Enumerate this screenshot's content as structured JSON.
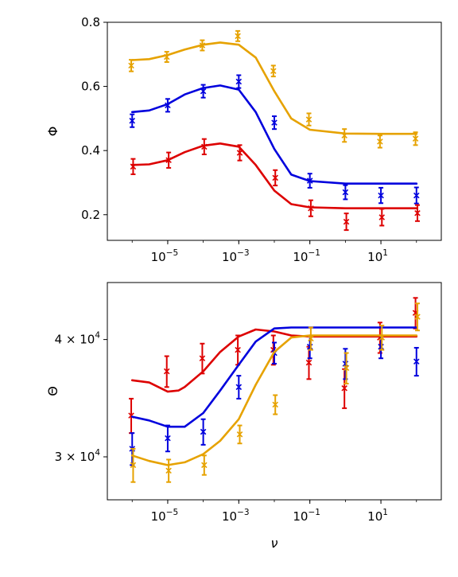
{
  "chart_data": [
    {
      "type": "line",
      "title": "",
      "xlabel": "",
      "ylabel": "Φ",
      "xscale": "log",
      "xlim": [
        2e-07,
        500.0
      ],
      "ylim": [
        0.12,
        0.8
      ],
      "x_ticks": [
        {
          "value": 1e-05,
          "base": "10",
          "exp": "−5"
        },
        {
          "value": 0.001,
          "base": "10",
          "exp": "−3"
        },
        {
          "value": 0.1,
          "base": "10",
          "exp": "−1"
        },
        {
          "value": 10,
          "base": "10",
          "exp": "1"
        }
      ],
      "y_ticks": [
        {
          "value": 0.2,
          "label": "0.2"
        },
        {
          "value": 0.4,
          "label": "0.4"
        },
        {
          "value": 0.6,
          "label": "0.6"
        },
        {
          "value": 0.8,
          "label": "0.8"
        }
      ],
      "grid": false,
      "legend": "none",
      "series": [
        {
          "color": "#e6a200",
          "curve_x": [
            1e-06,
            3e-06,
            1e-05,
            3e-05,
            0.0001,
            0.0003,
            0.001,
            0.003,
            0.01,
            0.03,
            0.1,
            1,
            10,
            100
          ],
          "curve_y": [
            0.682,
            0.685,
            0.698,
            0.715,
            0.73,
            0.737,
            0.73,
            0.69,
            0.585,
            0.5,
            0.465,
            0.453,
            0.452,
            0.452
          ],
          "points_x": [
            1e-06,
            1e-05,
            0.0001,
            0.001,
            0.01,
            0.1,
            1,
            10,
            100
          ],
          "points_y": [
            0.665,
            0.692,
            0.728,
            0.757,
            0.648,
            0.497,
            0.447,
            0.428,
            0.437
          ],
          "errors": [
            0.018,
            0.016,
            0.016,
            0.016,
            0.017,
            0.019,
            0.02,
            0.019,
            0.02
          ]
        },
        {
          "color": "#0000dd",
          "curve_x": [
            1e-06,
            3e-06,
            1e-05,
            3e-05,
            0.0001,
            0.0003,
            0.001,
            0.003,
            0.01,
            0.03,
            0.1,
            1,
            10,
            100
          ],
          "curve_y": [
            0.52,
            0.525,
            0.545,
            0.575,
            0.595,
            0.603,
            0.59,
            0.52,
            0.405,
            0.325,
            0.305,
            0.297,
            0.297,
            0.297
          ],
          "points_x": [
            1e-06,
            1e-05,
            0.0001,
            0.001,
            0.01,
            0.1,
            1,
            10,
            100
          ],
          "points_y": [
            0.493,
            0.541,
            0.585,
            0.615,
            0.487,
            0.306,
            0.27,
            0.26,
            0.26
          ],
          "errors": [
            0.02,
            0.02,
            0.02,
            0.02,
            0.02,
            0.022,
            0.022,
            0.024,
            0.025
          ]
        },
        {
          "color": "#dd0000",
          "curve_x": [
            1e-06,
            3e-06,
            1e-05,
            3e-05,
            0.0001,
            0.0003,
            0.001,
            0.003,
            0.01,
            0.03,
            0.1,
            1,
            10,
            100
          ],
          "curve_y": [
            0.355,
            0.357,
            0.37,
            0.395,
            0.415,
            0.422,
            0.412,
            0.355,
            0.275,
            0.233,
            0.223,
            0.22,
            0.22,
            0.22
          ],
          "points_x": [
            1e-06,
            1e-05,
            0.0001,
            0.001,
            0.01,
            0.1,
            1,
            10,
            100
          ],
          "points_y": [
            0.35,
            0.37,
            0.412,
            0.393,
            0.315,
            0.22,
            0.178,
            0.192,
            0.205
          ],
          "errors": [
            0.024,
            0.024,
            0.024,
            0.024,
            0.024,
            0.025,
            0.026,
            0.026,
            0.025
          ]
        }
      ]
    },
    {
      "type": "line",
      "title": "",
      "xlabel": "ν",
      "ylabel": "Θ",
      "xscale": "log",
      "yscale": "log",
      "xlim": [
        2e-07,
        500.0
      ],
      "ylim": [
        27000,
        46000
      ],
      "x_ticks": [
        {
          "value": 1e-05,
          "base": "10",
          "exp": "−5"
        },
        {
          "value": 0.001,
          "base": "10",
          "exp": "−3"
        },
        {
          "value": 0.1,
          "base": "10",
          "exp": "−1"
        },
        {
          "value": 10,
          "base": "10",
          "exp": "1"
        }
      ],
      "y_ticks": [
        {
          "value": 30000,
          "base": "3 × 10",
          "exp": "4"
        },
        {
          "value": 40000,
          "base": "4 × 10",
          "exp": "4"
        }
      ],
      "grid": false,
      "legend": "none",
      "series": [
        {
          "color": "#dd0000",
          "curve_x": [
            1e-06,
            3e-06,
            1e-05,
            2e-05,
            3e-05,
            0.0001,
            0.0003,
            0.001,
            0.003,
            0.01,
            0.03,
            0.1,
            1,
            10,
            100
          ],
          "curve_y": [
            36200,
            36000,
            35200,
            35300,
            35600,
            37000,
            38800,
            40300,
            41000,
            40800,
            40400,
            40300,
            40300,
            40300,
            40300
          ],
          "points_x": [
            1e-06,
            1e-05,
            0.0001,
            0.001,
            0.01,
            0.1,
            1,
            10,
            100
          ],
          "points_y": [
            33200,
            37000,
            38200,
            39000,
            39000,
            37800,
            35500,
            40200,
            42700
          ],
          "errors": [
            1400,
            1400,
            1400,
            1400,
            1400,
            1500,
            1700,
            1500,
            1600
          ]
        },
        {
          "color": "#0000dd",
          "curve_x": [
            1e-06,
            3e-06,
            1e-05,
            3e-05,
            0.0001,
            0.0003,
            0.001,
            0.003,
            0.01,
            0.03,
            0.1,
            1,
            10,
            100
          ],
          "curve_y": [
            33100,
            32800,
            32300,
            32300,
            33400,
            35300,
            37600,
            39800,
            41100,
            41200,
            41200,
            41200,
            41200,
            41200
          ],
          "points_x": [
            1e-06,
            1e-05,
            0.0001,
            0.001,
            0.01,
            0.1,
            1,
            10,
            100
          ],
          "points_y": [
            30600,
            31400,
            31900,
            35600,
            38700,
            39300,
            37700,
            39300,
            37900
          ],
          "errors": [
            1200,
            1000,
            1000,
            1000,
            1000,
            1100,
            1400,
            1100,
            1300
          ]
        },
        {
          "color": "#e6a200",
          "curve_x": [
            1e-06,
            3e-06,
            1e-05,
            3e-05,
            0.0001,
            0.0003,
            0.001,
            0.003,
            0.01,
            0.03,
            0.1,
            1,
            10,
            100
          ],
          "curve_y": [
            30100,
            29700,
            29400,
            29600,
            30200,
            31200,
            32900,
            35800,
            38800,
            40200,
            40400,
            40400,
            40400,
            40400
          ],
          "points_x": [
            1e-06,
            1e-05,
            0.0001,
            0.001,
            0.01,
            0.1,
            1,
            10,
            100
          ],
          "points_y": [
            29400,
            29000,
            29400,
            31700,
            34100,
            40100,
            37300,
            40200,
            42300
          ],
          "errors": [
            1200,
            800,
            700,
            700,
            800,
            1100,
            1400,
            1200,
            1400
          ]
        }
      ]
    }
  ]
}
